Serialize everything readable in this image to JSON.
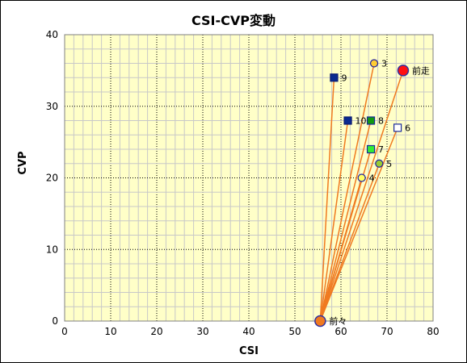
{
  "chart_data": {
    "type": "scatter",
    "title": "CSI-CVP変動",
    "xlabel": "CSI",
    "ylabel": "CVP",
    "xlim": [
      0,
      80
    ],
    "ylim": [
      0,
      40
    ],
    "x_ticks": [
      "0",
      "10",
      "20",
      "30",
      "40",
      "50",
      "60",
      "70",
      "80"
    ],
    "y_ticks": [
      "0",
      "10",
      "20",
      "30",
      "40"
    ],
    "grid": true,
    "hub": "前々",
    "colors": {
      "plot_bg": "#ffffc8",
      "line": "#f07a20"
    },
    "points": [
      {
        "label": "前々",
        "x": 55.5,
        "y": 0,
        "marker": "circle-large",
        "fill": "#f07a20",
        "stroke": "#3030a0"
      },
      {
        "label": "前走",
        "x": 73.5,
        "y": 35,
        "marker": "circle-large",
        "fill": "#ff1010",
        "stroke": "#3030a0"
      },
      {
        "label": "3",
        "x": 67.2,
        "y": 36,
        "marker": "circle",
        "fill": "#ffcc33",
        "stroke": "#2020a0"
      },
      {
        "label": "4",
        "x": 64.5,
        "y": 20,
        "marker": "circle",
        "fill": "#ffff66",
        "stroke": "#2020a0"
      },
      {
        "label": "5",
        "x": 68.3,
        "y": 22,
        "marker": "circle",
        "fill": "#99cc33",
        "stroke": "#2020a0"
      },
      {
        "label": "6",
        "x": 72.3,
        "y": 27,
        "marker": "square",
        "fill": "#ffffff",
        "stroke": "#1a2a9a"
      },
      {
        "label": "7",
        "x": 66.5,
        "y": 24,
        "marker": "square",
        "fill": "#33ee33",
        "stroke": "#1a2a9a"
      },
      {
        "label": "8",
        "x": 66.5,
        "y": 28,
        "marker": "square",
        "fill": "#119911",
        "stroke": "#1a2a9a"
      },
      {
        "label": "9",
        "x": 58.5,
        "y": 34,
        "marker": "square",
        "fill": "#0a2a90",
        "stroke": "#0a1a70"
      },
      {
        "label": "10",
        "x": 61.5,
        "y": 28,
        "marker": "square",
        "fill": "#0a2a90",
        "stroke": "#0a1a70"
      }
    ]
  }
}
